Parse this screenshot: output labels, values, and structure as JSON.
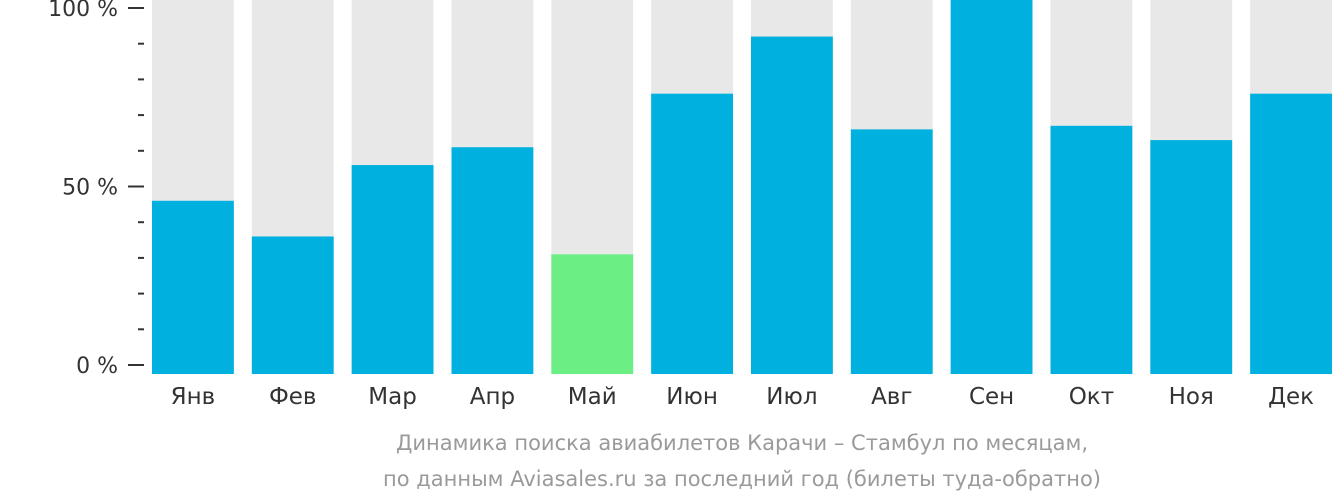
{
  "chart_data": {
    "type": "bar",
    "categories": [
      "Янв",
      "Фев",
      "Мар",
      "Апр",
      "Май",
      "Июн",
      "Июл",
      "Авг",
      "Сен",
      "Окт",
      "Ноя",
      "Дек"
    ],
    "values": [
      46,
      36,
      56,
      61,
      31,
      76,
      92,
      66,
      100,
      67,
      63,
      76
    ],
    "highlight_index": 4,
    "ylim": [
      0,
      100
    ],
    "y_tick_labels": [
      {
        "value": 0,
        "label": "0 %"
      },
      {
        "value": 50,
        "label": "50 %"
      },
      {
        "value": 100,
        "label": "100 %"
      }
    ],
    "y_minor_step": 10,
    "colors": {
      "bar": "#00b0de",
      "highlight": "#6bef85",
      "track": "#e8e8e8",
      "axis": "#333333",
      "tick_text": "#333333"
    },
    "caption_lines": [
      "Динамика поиска авиабилетов Карачи – Стамбул по месяцам,",
      "по данным Aviasales.ru за последний год (билеты туда-обратно)"
    ]
  }
}
